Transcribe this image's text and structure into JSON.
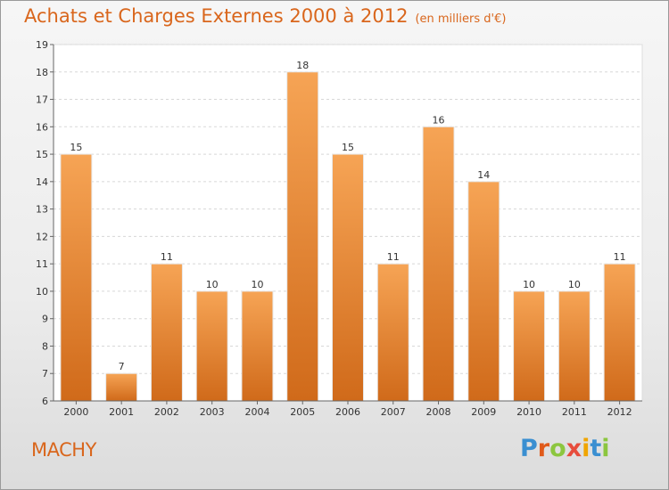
{
  "header": {
    "title": "Achats et Charges Externes 2000 à 2012",
    "unit": "(en milliers d'€)"
  },
  "footer": {
    "commune": "MACHY",
    "logo_letters": [
      "P",
      "r",
      "o",
      "x",
      "i",
      "t",
      "i"
    ],
    "logo_colors": [
      "#3a8fd1",
      "#e05a1a",
      "#8cc63f",
      "#e74c3c",
      "#f0a500",
      "#3a8fd1",
      "#8cc63f"
    ]
  },
  "chart_data": {
    "type": "bar",
    "title": "Achats et Charges Externes 2000 à 2012",
    "categories": [
      "2000",
      "2001",
      "2002",
      "2003",
      "2004",
      "2005",
      "2006",
      "2007",
      "2008",
      "2009",
      "2010",
      "2011",
      "2012"
    ],
    "values": [
      15,
      7,
      11,
      10,
      10,
      18,
      15,
      11,
      16,
      14,
      10,
      10,
      11
    ],
    "ylim": [
      6,
      19
    ],
    "yticks": [
      6,
      7,
      8,
      9,
      10,
      11,
      12,
      13,
      14,
      15,
      16,
      17,
      18,
      19
    ],
    "grid": true,
    "bar_color": "#f0923a",
    "bar_color_dark": "#d06a1a"
  }
}
